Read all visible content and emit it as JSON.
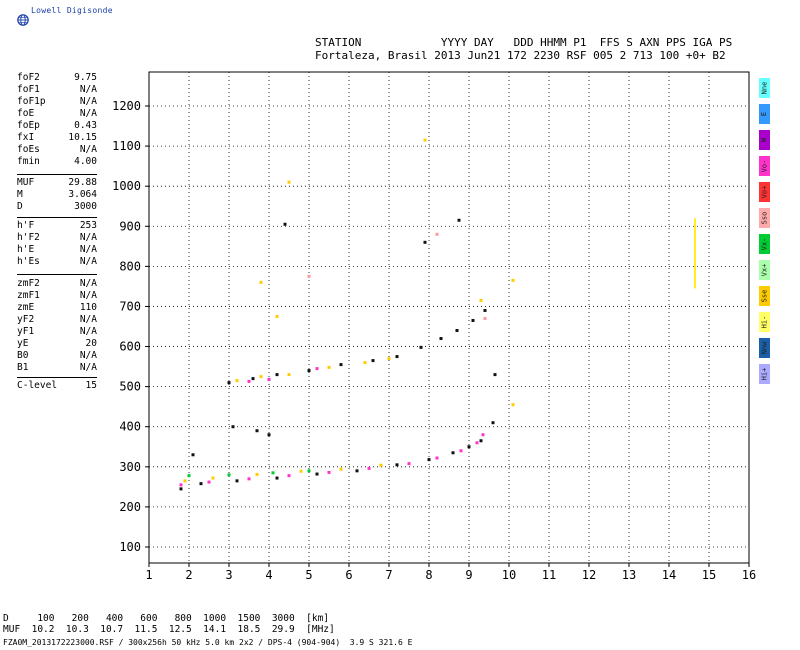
{
  "app": {
    "logo_text": "Lowell Digisonde"
  },
  "header": {
    "labels_line": "STATION            YYYY DAY   DDD HHMM P1  FFS S AXN PPS IGA PS",
    "values_line": "Fortaleza, Brasil 2013 Jun21 172 2230 RSF 005 2 713 100 +0+ B2"
  },
  "params_group1": [
    {
      "key": "foF2",
      "val": "9.75"
    },
    {
      "key": "foF1",
      "val": "N/A"
    },
    {
      "key": "foF1p",
      "val": "N/A"
    },
    {
      "key": "foE",
      "val": "N/A"
    },
    {
      "key": "foEp",
      "val": "0.43"
    },
    {
      "key": "fxI",
      "val": "10.15"
    },
    {
      "key": "foEs",
      "val": "N/A"
    },
    {
      "key": "fmin",
      "val": "4.00"
    }
  ],
  "params_group2": [
    {
      "key": "MUF",
      "val": "29.88"
    },
    {
      "key": "M",
      "val": "3.064"
    },
    {
      "key": "D",
      "val": "3000"
    }
  ],
  "params_group3": [
    {
      "key": "h'F",
      "val": "253"
    },
    {
      "key": "h'F2",
      "val": "N/A"
    },
    {
      "key": "h'E",
      "val": "N/A"
    },
    {
      "key": "h'Es",
      "val": "N/A"
    }
  ],
  "params_group4": [
    {
      "key": "zmF2",
      "val": "N/A"
    },
    {
      "key": "zmF1",
      "val": "N/A"
    },
    {
      "key": "zmE",
      "val": "110"
    },
    {
      "key": "yF2",
      "val": "N/A"
    },
    {
      "key": "yF1",
      "val": "N/A"
    },
    {
      "key": "yE",
      "val": "20"
    },
    {
      "key": "B0",
      "val": "N/A"
    },
    {
      "key": "B1",
      "val": "N/A"
    }
  ],
  "params_group5": [
    {
      "key": "C-level",
      "val": "15"
    }
  ],
  "legend": [
    {
      "label": "Nne",
      "color": "#66ffff"
    },
    {
      "label": "E",
      "color": "#3399ff"
    },
    {
      "label": "W",
      "color": "#aa00cc"
    },
    {
      "label": "Vo-",
      "color": "#ff33cc"
    },
    {
      "label": "Vo+",
      "color": "#ff3333"
    },
    {
      "label": "Sso",
      "color": "#ffaaaa"
    },
    {
      "label": "Vx-",
      "color": "#00cc33"
    },
    {
      "label": "Vx+",
      "color": "#aaffaa"
    },
    {
      "label": "Sse",
      "color": "#ffcc00"
    },
    {
      "label": "Hi-",
      "color": "#ffff66"
    },
    {
      "label": "Nnw",
      "color": "#1a5fa8"
    },
    {
      "label": "Hi+",
      "color": "#aaaaff"
    }
  ],
  "bottom": {
    "line1": "D     100   200   400   600   800  1000  1500  3000  [km]",
    "line2": "MUF  10.2  10.3  10.7  11.5  12.5  14.1  18.5  29.9  [MHz]",
    "line3": "FZA0M_2013172223000.RSF / 300x256h 50 kHz 5.0 km 2x2 / DPS-4 (904-904)  3.9 S 321.6 E"
  },
  "chart_data": {
    "type": "scatter",
    "title": "",
    "xlabel": "",
    "ylabel": "",
    "xlim": [
      1,
      16
    ],
    "ylim": [
      75,
      1300
    ],
    "x_ticks": [
      "1",
      "2",
      "3",
      "4",
      "5",
      "6",
      "7",
      "8",
      "9",
      "10",
      "11",
      "12",
      "13",
      "14",
      "15",
      "16"
    ],
    "y_ticks": [
      "100",
      "200",
      "300",
      "400",
      "500",
      "600",
      "700",
      "800",
      "900",
      "1000",
      "1100",
      "1200"
    ],
    "grid": true,
    "series": [
      {
        "color": "#ff33cc",
        "points": [
          [
            1.8,
            255
          ],
          [
            2.5,
            262
          ],
          [
            3.5,
            270
          ],
          [
            4.5,
            278
          ],
          [
            5.5,
            286
          ],
          [
            6.5,
            296
          ],
          [
            7.5,
            308
          ],
          [
            8.2,
            322
          ],
          [
            8.8,
            340
          ],
          [
            9.2,
            360
          ],
          [
            9.35,
            380
          ]
        ]
      },
      {
        "color": "#111111",
        "points": [
          [
            1.8,
            245
          ],
          [
            2.3,
            258
          ],
          [
            3.2,
            265
          ],
          [
            4.2,
            272
          ],
          [
            5.2,
            282
          ],
          [
            6.2,
            290
          ],
          [
            7.2,
            305
          ],
          [
            8,
            318
          ],
          [
            8.6,
            335
          ],
          [
            9,
            350
          ],
          [
            9.3,
            365
          ],
          [
            9.6,
            410
          ]
        ]
      },
      {
        "color": "#ffcc00",
        "points": [
          [
            1.9,
            265
          ],
          [
            2.6,
            272
          ],
          [
            3.7,
            281
          ],
          [
            4.8,
            289
          ],
          [
            5.8,
            294
          ],
          [
            6.8,
            304
          ]
        ]
      },
      {
        "color": "#00cc33",
        "points": [
          [
            2,
            278
          ],
          [
            3,
            280
          ],
          [
            4.1,
            285
          ],
          [
            5,
            290
          ]
        ]
      },
      {
        "color": "#111111",
        "points": [
          [
            3,
            510
          ],
          [
            3.6,
            520
          ],
          [
            4.2,
            530
          ],
          [
            5,
            540
          ],
          [
            5.8,
            555
          ],
          [
            6.6,
            565
          ],
          [
            7.2,
            575
          ],
          [
            7.8,
            598
          ],
          [
            8.3,
            620
          ],
          [
            8.7,
            640
          ],
          [
            9.1,
            665
          ],
          [
            9.4,
            690
          ]
        ]
      },
      {
        "color": "#ffcc00",
        "points": [
          [
            3.2,
            515
          ],
          [
            3.8,
            525
          ],
          [
            4.5,
            530
          ],
          [
            5.5,
            548
          ],
          [
            6.4,
            560
          ],
          [
            7.0,
            570
          ]
        ]
      },
      {
        "color": "#ff33cc",
        "points": [
          [
            3.5,
            513
          ],
          [
            4.0,
            518
          ],
          [
            5.2,
            545
          ]
        ]
      },
      {
        "color": "#111111",
        "points": [
          [
            3.1,
            400
          ],
          [
            3.7,
            390
          ],
          [
            4.0,
            380
          ],
          [
            2.1,
            330
          ],
          [
            4.4,
            905
          ],
          [
            7.9,
            860
          ],
          [
            8.75,
            915
          ],
          [
            9.65,
            530
          ]
        ]
      },
      {
        "color": "#ffcc00",
        "points": [
          [
            4.5,
            1010
          ],
          [
            7.9,
            1115
          ],
          [
            3.8,
            760
          ],
          [
            4.2,
            675
          ],
          [
            10.1,
            765
          ],
          [
            10.1,
            455
          ],
          [
            9.3,
            715
          ]
        ]
      },
      {
        "color": "#ff9999",
        "points": [
          [
            5.0,
            775
          ],
          [
            8.2,
            880
          ],
          [
            9.4,
            670
          ]
        ]
      }
    ],
    "vertical_trace": {
      "color": "#ffee22",
      "x": 14.65,
      "y_from": 745,
      "y_to": 920
    }
  }
}
